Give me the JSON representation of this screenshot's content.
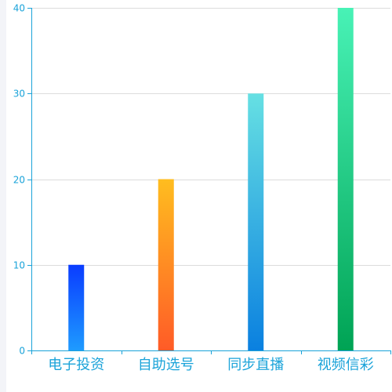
{
  "chart_data": {
    "type": "bar",
    "categories": [
      "电子投资",
      "自助选号",
      "同步直播",
      "视频信彩"
    ],
    "values": [
      10,
      20,
      30,
      40
    ],
    "ylim": [
      0,
      40
    ],
    "yticks": [
      0,
      10,
      20,
      30,
      40
    ],
    "grid": true,
    "legend": "none",
    "colors": {
      "axis": "#1aa3d9",
      "grid": "#dcdcdc",
      "label": "#1aa3d9",
      "bars": [
        {
          "top": "#0a3cff",
          "bottom": "#1e9bff"
        },
        {
          "top": "#ffbd1f",
          "bottom": "#ff5b27"
        },
        {
          "top": "#66e0e3",
          "bottom": "#0a80e0"
        },
        {
          "top": "#48f2b6",
          "bottom": "#00a354"
        }
      ]
    }
  }
}
